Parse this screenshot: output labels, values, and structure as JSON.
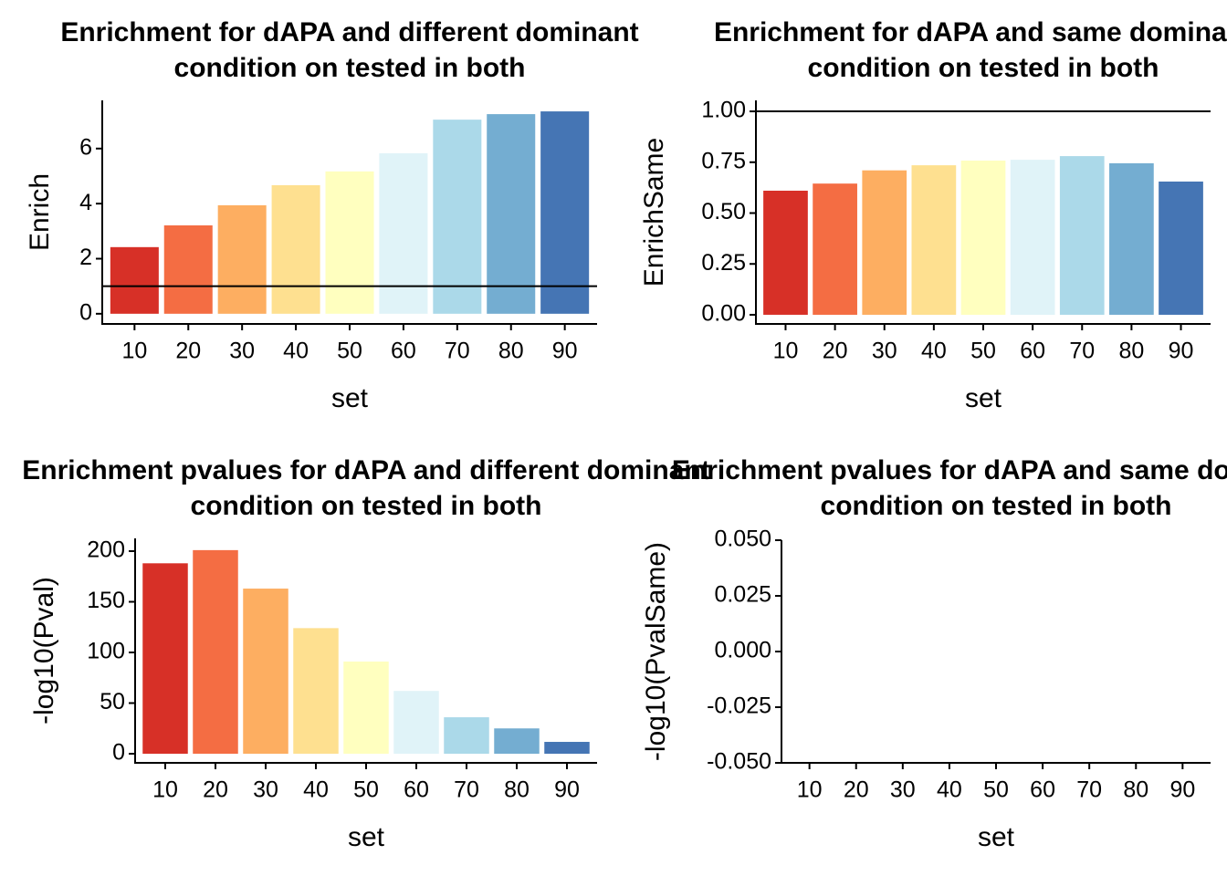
{
  "chart_data": [
    {
      "type": "bar",
      "title": [
        "Enrichment for dAPA and different dominant",
        "condition on tested in both"
      ],
      "xlabel": "set",
      "ylabel": "Enrich",
      "categories": [
        "10",
        "20",
        "30",
        "40",
        "50",
        "60",
        "70",
        "80",
        "90"
      ],
      "values": [
        2.42,
        3.21,
        3.94,
        4.67,
        5.17,
        5.83,
        7.05,
        7.25,
        7.35
      ],
      "colors": [
        "#d73027",
        "#f46d43",
        "#fdae61",
        "#fee090",
        "#ffffbf",
        "#e0f3f8",
        "#abd9e9",
        "#74add1",
        "#4575b4"
      ],
      "ylim": [
        -0.37,
        7.75
      ],
      "yticks": [
        0,
        2,
        4,
        6
      ],
      "hline": 1
    },
    {
      "type": "bar",
      "title": [
        "Enrichment for dAPA and same dominant",
        "condition on tested in both"
      ],
      "xlabel": "set",
      "ylabel": "EnrichSame",
      "categories": [
        "10",
        "20",
        "30",
        "40",
        "50",
        "60",
        "70",
        "80",
        "90"
      ],
      "values": [
        0.61,
        0.645,
        0.71,
        0.735,
        0.758,
        0.762,
        0.78,
        0.745,
        0.655
      ],
      "colors": [
        "#d73027",
        "#f46d43",
        "#fdae61",
        "#fee090",
        "#ffffbf",
        "#e0f3f8",
        "#abd9e9",
        "#74add1",
        "#4575b4"
      ],
      "ylim": [
        -0.045,
        1.054
      ],
      "yticks": [
        {
          "value": 0,
          "label": "0.00"
        },
        {
          "value": 0.25,
          "label": "0.25"
        },
        {
          "value": 0.5,
          "label": "0.50"
        },
        {
          "value": 0.75,
          "label": "0.75"
        },
        {
          "value": 1,
          "label": "1.00"
        }
      ],
      "hline": 1
    },
    {
      "type": "bar",
      "title": [
        "Enrichment pvalues for dAPA and different dominant",
        "condition on tested in both"
      ],
      "xlabel": "set",
      "ylabel": "-log10(Pval)",
      "categories": [
        "10",
        "20",
        "30",
        "40",
        "50",
        "60",
        "70",
        "80",
        "90"
      ],
      "values": [
        188,
        201,
        163,
        124,
        91,
        62,
        36,
        25,
        11.7
      ],
      "colors": [
        "#d73027",
        "#f46d43",
        "#fdae61",
        "#fee090",
        "#ffffbf",
        "#e0f3f8",
        "#abd9e9",
        "#74add1",
        "#4575b4"
      ],
      "ylim": [
        -9,
        212.6
      ],
      "yticks": [
        0,
        50,
        100,
        150,
        200
      ]
    },
    {
      "type": "bar",
      "title": [
        "Enrichment pvalues for dAPA and same dominant",
        "condition on tested in both"
      ],
      "xlabel": "set",
      "ylabel": "-log10(PvalSame)",
      "categories": [
        "10",
        "20",
        "30",
        "40",
        "50",
        "60",
        "70",
        "80",
        "90"
      ],
      "values": [
        null,
        null,
        null,
        null,
        null,
        null,
        null,
        null,
        null
      ],
      "colors": [
        "#d73027",
        "#f46d43",
        "#fdae61",
        "#fee090",
        "#ffffbf",
        "#e0f3f8",
        "#abd9e9",
        "#74add1",
        "#4575b4"
      ],
      "ylim": [
        -0.05,
        0.05
      ],
      "yticks": [
        {
          "value": -0.05,
          "label": "-0.050"
        },
        {
          "value": -0.025,
          "label": "-0.025"
        },
        {
          "value": 0,
          "label": "0.000"
        },
        {
          "value": 0.025,
          "label": "0.025"
        },
        {
          "value": 0.05,
          "label": "0.050"
        }
      ]
    }
  ]
}
